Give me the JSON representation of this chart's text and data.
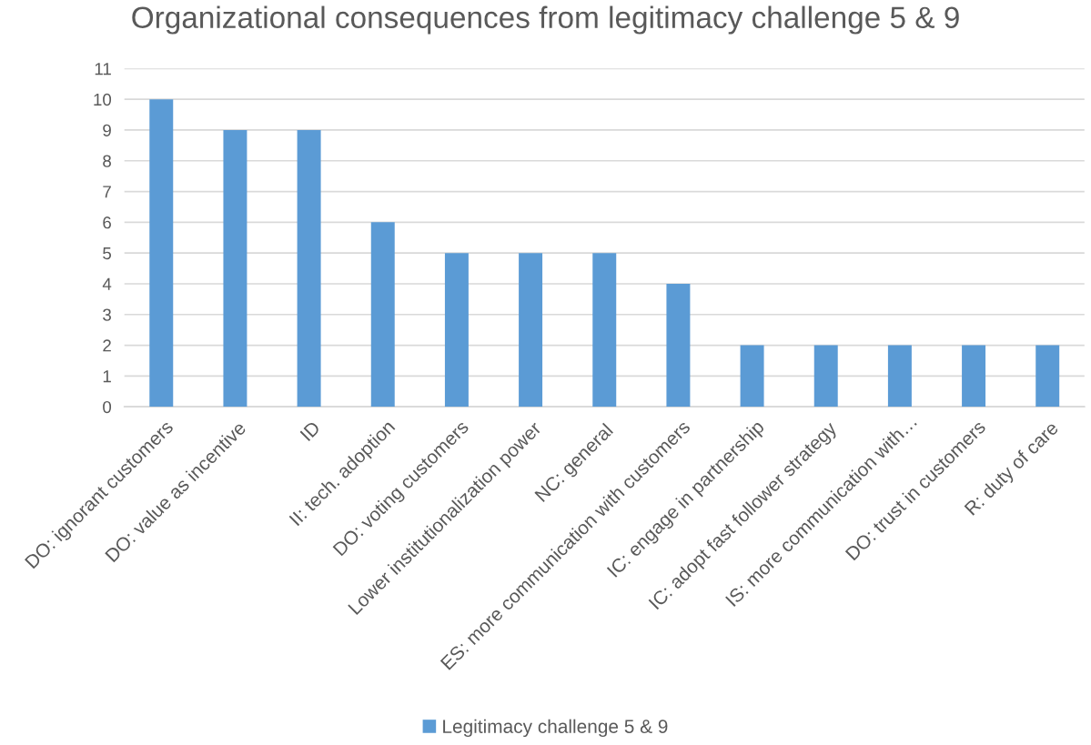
{
  "chart_data": {
    "type": "bar",
    "title": "Organizational consequences from legitimacy challenge 5 & 9",
    "categories": [
      "DO: ignorant customers",
      "DO: value as incentive",
      "ID",
      "II: tech. adoption",
      "DO: voting customers",
      "Lower institutionalization power",
      "NC: general",
      "ES: more communication with customers",
      "IC: engage in partnership",
      "IC: adopt fast follower strategy",
      "IS: more communication with…",
      "DO: trust in customers",
      "R: duty of care"
    ],
    "series": [
      {
        "name": "Legitimacy challenge 5 & 9",
        "color": "#5b9bd5",
        "values": [
          10,
          9,
          9,
          6,
          5,
          5,
          5,
          4,
          2,
          2,
          2,
          2,
          2
        ]
      }
    ],
    "ylim": [
      0,
      11
    ],
    "yticks": [
      0,
      1,
      2,
      3,
      4,
      5,
      6,
      7,
      8,
      9,
      10,
      11
    ],
    "grid": "y",
    "legend": "bottom"
  }
}
